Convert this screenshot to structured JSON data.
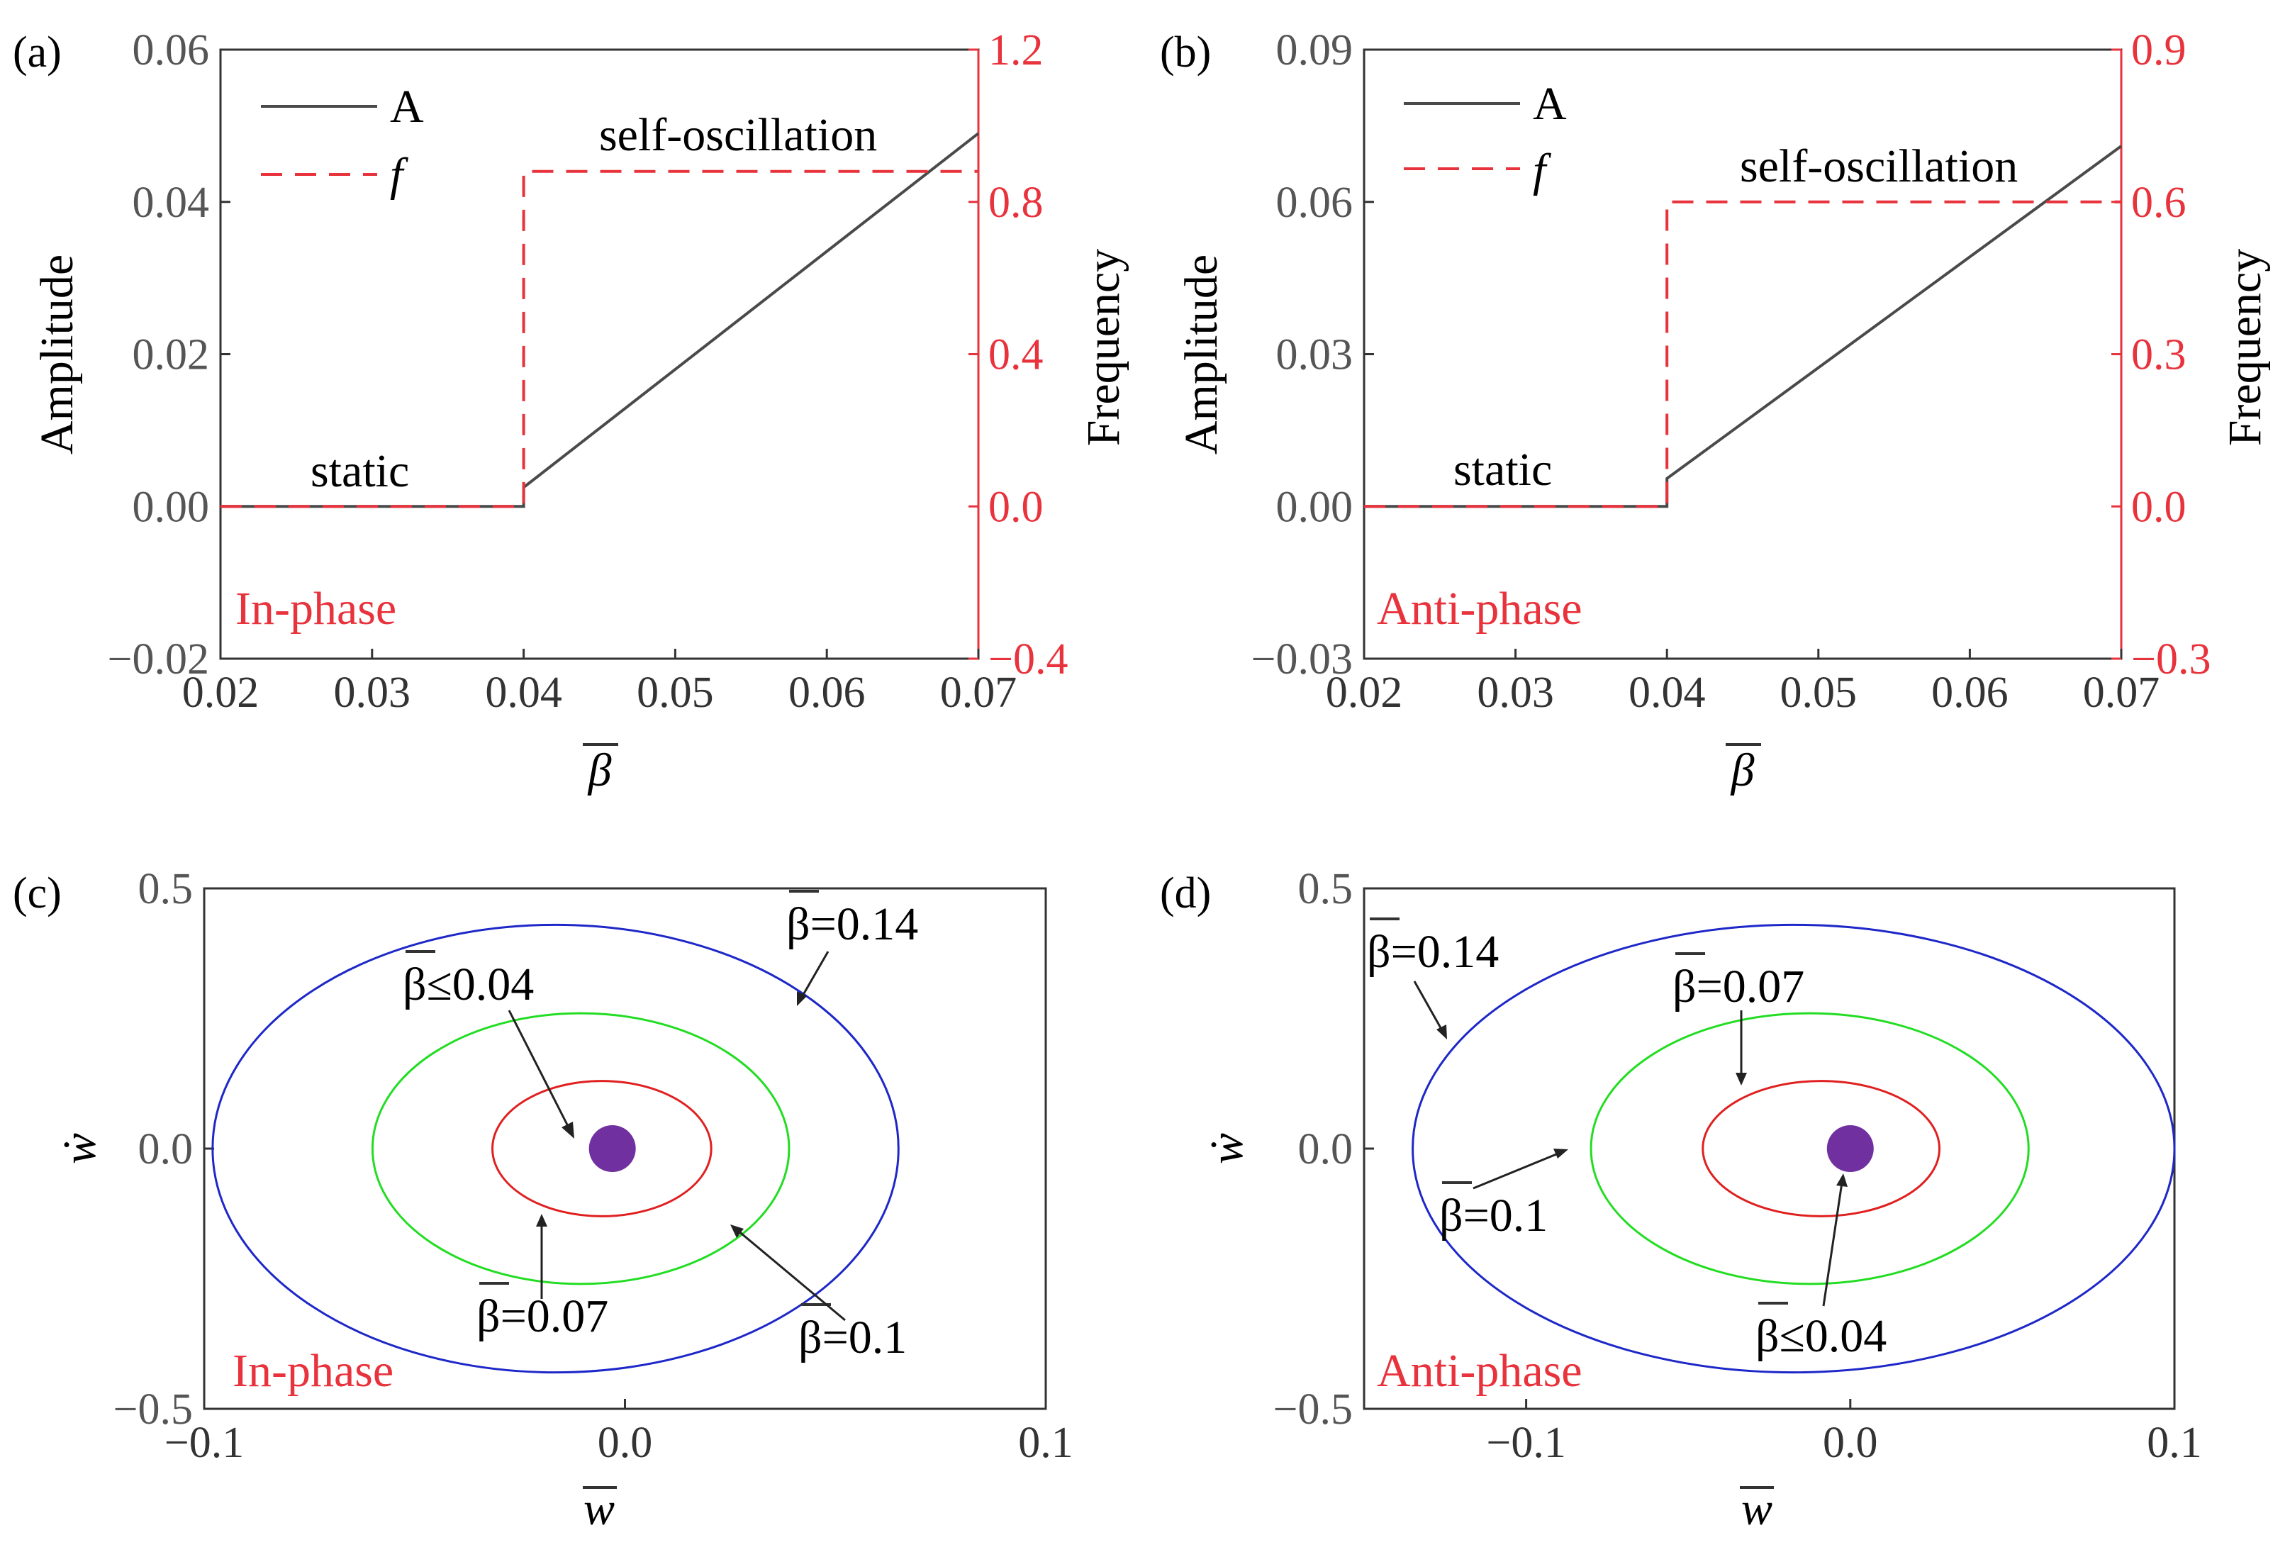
{
  "chart_data": [
    {
      "id": "a",
      "type": "line",
      "panel_label": "(a)",
      "xlabel": "β",
      "ylabel": "Amplitude",
      "y2label": "Frequency",
      "xlim": [
        0.02,
        0.07
      ],
      "ylim": [
        -0.02,
        0.06
      ],
      "y2lim": [
        -0.4,
        1.2
      ],
      "xticks": [
        "0.02",
        "0.03",
        "0.04",
        "0.05",
        "0.06",
        "0.07"
      ],
      "yticks": [
        "−0.02",
        "0.00",
        "0.02",
        "0.04",
        "0.06"
      ],
      "y2ticks": [
        "−0.4",
        "0.0",
        "0.4",
        "0.8",
        "1.2"
      ],
      "legend": {
        "A": "A",
        "f": "f"
      },
      "annotations": {
        "upper": "self-oscillation",
        "lower": "static",
        "phase": "In-phase"
      },
      "colors": {
        "A": "#4a4a4a",
        "f": "#e8323c",
        "right_axis": "#e8323c",
        "phase": "#e8323c"
      },
      "series": [
        {
          "name": "A",
          "axis": "left",
          "style": "solid",
          "x": [
            0.02,
            0.04,
            0.04,
            0.07
          ],
          "y": [
            0.0,
            0.0,
            0.0025,
            0.049
          ]
        },
        {
          "name": "f",
          "axis": "right",
          "style": "dashed",
          "x": [
            0.02,
            0.04,
            0.04,
            0.07
          ],
          "y": [
            0.0,
            0.0,
            0.88,
            0.88
          ]
        }
      ]
    },
    {
      "id": "b",
      "type": "line",
      "panel_label": "(b)",
      "xlabel": "β",
      "ylabel": "Amplitude",
      "y2label": "Frequency",
      "xlim": [
        0.02,
        0.07
      ],
      "ylim": [
        -0.03,
        0.09
      ],
      "y2lim": [
        -0.3,
        0.9
      ],
      "xticks": [
        "0.02",
        "0.03",
        "0.04",
        "0.05",
        "0.06",
        "0.07"
      ],
      "yticks": [
        "−0.03",
        "0.00",
        "0.03",
        "0.06",
        "0.09"
      ],
      "y2ticks": [
        "−0.3",
        "0.0",
        "0.3",
        "0.6",
        "0.9"
      ],
      "legend": {
        "A": "A",
        "f": "f"
      },
      "annotations": {
        "upper": "self-oscillation",
        "lower": "static",
        "phase": "Anti-phase"
      },
      "colors": {
        "A": "#4a4a4a",
        "f": "#e8323c",
        "right_axis": "#e8323c",
        "phase": "#e8323c"
      },
      "series": [
        {
          "name": "A",
          "axis": "left",
          "style": "solid",
          "x": [
            0.02,
            0.04,
            0.04,
            0.07
          ],
          "y": [
            0.0,
            0.0,
            0.0055,
            0.071
          ]
        },
        {
          "name": "f",
          "axis": "right",
          "style": "dashed",
          "x": [
            0.02,
            0.04,
            0.04,
            0.07
          ],
          "y": [
            0.0,
            0.0,
            0.6,
            0.6
          ]
        }
      ]
    },
    {
      "id": "c",
      "type": "line",
      "subtype": "phase-portrait",
      "panel_label": "(c)",
      "xlabel": "w",
      "ylabel": "ẇ",
      "xlim": [
        -0.1,
        0.1
      ],
      "ylim": [
        -0.5,
        0.5
      ],
      "xticks": [
        "−0.1",
        "0.0",
        "0.1"
      ],
      "yticks": [
        "−0.5",
        "0.0",
        "0.5"
      ],
      "phase_label": "In-phase",
      "colors": {
        "phase": "#e8323c"
      },
      "point": {
        "label": "β≤0.04",
        "x": -0.003,
        "y": 0.0,
        "color": "#7030a0"
      },
      "cycles": [
        {
          "label": "β=0.07",
          "center": [
            -0.0055,
            0.0
          ],
          "semi_axes": [
            0.026,
            0.13
          ],
          "color": "#e02020"
        },
        {
          "label": "β=0.1",
          "center": [
            -0.0105,
            0.0
          ],
          "semi_axes": [
            0.0495,
            0.26
          ],
          "color": "#22dd22"
        },
        {
          "label": "β=0.14",
          "center": [
            -0.0165,
            0.0
          ],
          "semi_axes": [
            0.0815,
            0.43
          ],
          "color": "#1e28c8"
        }
      ]
    },
    {
      "id": "d",
      "type": "line",
      "subtype": "phase-portrait",
      "panel_label": "(d)",
      "xlabel": "w",
      "ylabel": "ẇ",
      "xlim": [
        -0.15,
        0.1
      ],
      "ylim": [
        -0.5,
        0.5
      ],
      "xticks": [
        "−0.1",
        "0.0",
        "0.1"
      ],
      "yticks": [
        "−0.5",
        "0.0",
        "0.5"
      ],
      "phase_label": "Anti-phase",
      "colors": {
        "phase": "#e8323c"
      },
      "point": {
        "label": "β≤0.04",
        "x": 0.0,
        "y": 0.0,
        "color": "#7030a0"
      },
      "cycles": [
        {
          "label": "β=0.07",
          "center": [
            -0.009,
            0.0
          ],
          "semi_axes": [
            0.0365,
            0.13
          ],
          "color": "#e02020"
        },
        {
          "label": "β=0.1",
          "center": [
            -0.0125,
            0.0
          ],
          "semi_axes": [
            0.0675,
            0.26
          ],
          "color": "#22dd22"
        },
        {
          "label": "β=0.14",
          "center": [
            -0.0175,
            0.0
          ],
          "semi_axes": [
            0.1175,
            0.43
          ],
          "color": "#1e28c8"
        }
      ]
    }
  ]
}
